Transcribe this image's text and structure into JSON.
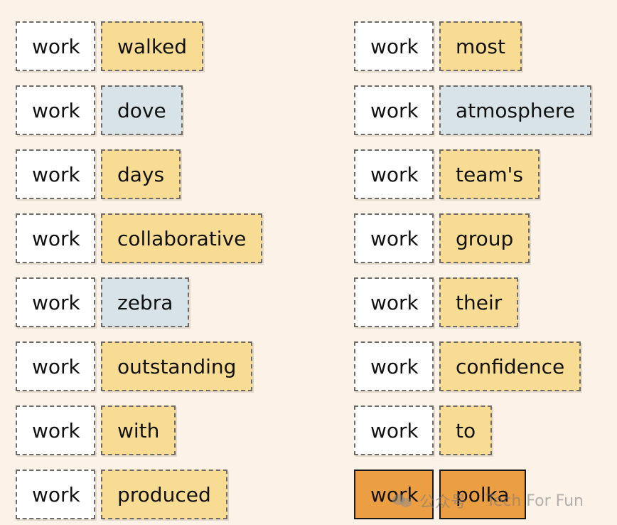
{
  "colors": {
    "background": "#fcf2e7",
    "query_chip": "#ffffff",
    "yellow_chip": "#f8dc93",
    "blue_chip": "#d7e3e7",
    "active_chip": "#eb9e42"
  },
  "left_column": [
    {
      "query": "work",
      "key": "walked",
      "color": "yellow"
    },
    {
      "query": "work",
      "key": "dove",
      "color": "blue"
    },
    {
      "query": "work",
      "key": "days",
      "color": "yellow"
    },
    {
      "query": "work",
      "key": "collaborative",
      "color": "yellow"
    },
    {
      "query": "work",
      "key": "zebra",
      "color": "blue"
    },
    {
      "query": "work",
      "key": "outstanding",
      "color": "yellow"
    },
    {
      "query": "work",
      "key": "with",
      "color": "yellow"
    },
    {
      "query": "work",
      "key": "produced",
      "color": "yellow"
    }
  ],
  "right_column": [
    {
      "query": "work",
      "key": "most",
      "color": "yellow"
    },
    {
      "query": "work",
      "key": "atmosphere",
      "color": "blue"
    },
    {
      "query": "work",
      "key": "team's",
      "color": "yellow"
    },
    {
      "query": "work",
      "key": "group",
      "color": "yellow"
    },
    {
      "query": "work",
      "key": "their",
      "color": "yellow"
    },
    {
      "query": "work",
      "key": "confidence",
      "color": "yellow"
    },
    {
      "query": "work",
      "key": "to",
      "color": "yellow"
    },
    {
      "query": "work",
      "key": "polka",
      "color": "active"
    }
  ],
  "watermark": {
    "icon": "wechat-icon",
    "channel": "公众号",
    "name": "Tech For Fun"
  }
}
